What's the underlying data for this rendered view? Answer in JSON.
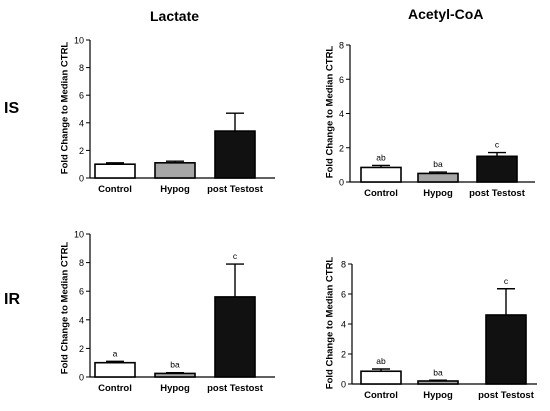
{
  "labels": {
    "col_lactate": "Lactate",
    "col_acetyl": "Acetyl-CoA",
    "row_is": "IS",
    "row_ir": "IR"
  },
  "colors": {
    "control": "#ffffff",
    "hypog": "#a6a6a6",
    "post_testost": "#111111",
    "axis": "#000000"
  },
  "chart_data": [
    {
      "id": "is-lactate",
      "type": "bar",
      "title": "",
      "xlabel": "",
      "ylabel": "Fold  Change to  Median CTRL",
      "categories": [
        "Control",
        "Hypog",
        "post Testost"
      ],
      "values": [
        1.0,
        1.1,
        3.4
      ],
      "errors": [
        0.1,
        0.12,
        1.3
      ],
      "letters": [
        "",
        "",
        ""
      ],
      "ylim": [
        0,
        10
      ],
      "yticks": [
        0,
        2,
        4,
        6,
        8,
        10
      ]
    },
    {
      "id": "is-acetyl",
      "type": "bar",
      "title": "",
      "xlabel": "",
      "ylabel": "Fold  Change to  Median CTRL",
      "categories": [
        "Control",
        "Hypog",
        "post Testost"
      ],
      "values": [
        0.85,
        0.5,
        1.5
      ],
      "errors": [
        0.12,
        0.08,
        0.22
      ],
      "letters": [
        "ab",
        "ba",
        "c"
      ],
      "ylim": [
        0,
        8
      ],
      "yticks": [
        0,
        2,
        4,
        6,
        8
      ]
    },
    {
      "id": "ir-lactate",
      "type": "bar",
      "title": "",
      "xlabel": "",
      "ylabel": "Fold  Change to  Median CTRL",
      "categories": [
        "Control",
        "Hypog",
        "post Testost"
      ],
      "values": [
        1.0,
        0.25,
        5.6
      ],
      "errors": [
        0.1,
        0.05,
        2.3
      ],
      "letters": [
        "a",
        "ba",
        "c"
      ],
      "ylim": [
        0,
        10
      ],
      "yticks": [
        0,
        2,
        4,
        6,
        8,
        10
      ]
    },
    {
      "id": "ir-acetyl",
      "type": "bar",
      "title": "",
      "xlabel": "",
      "ylabel": "Fold  Change to  Median CTRL",
      "categories": [
        "Control",
        "Hypog",
        "post Testost"
      ],
      "values": [
        0.85,
        0.2,
        4.6
      ],
      "errors": [
        0.15,
        0.05,
        1.75
      ],
      "letters": [
        "ab",
        "ba",
        "c"
      ],
      "ylim": [
        0,
        8
      ],
      "yticks": [
        0,
        2,
        4,
        6,
        8
      ]
    }
  ]
}
